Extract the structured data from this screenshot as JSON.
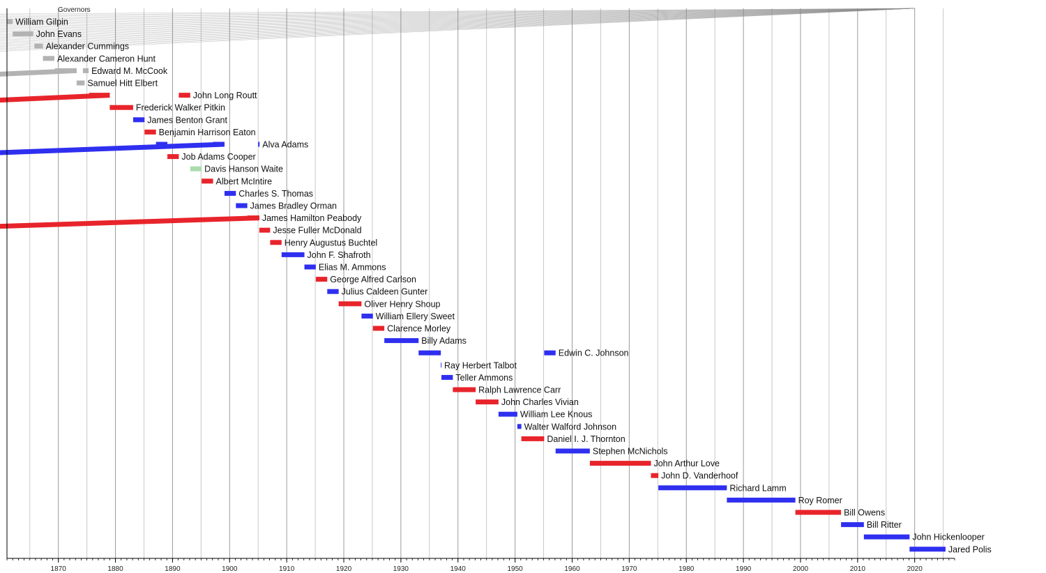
{
  "chart_data": {
    "type": "bar",
    "title": "Governors",
    "xlabel": "",
    "ylabel": "",
    "xlim": [
      1861,
      2027
    ],
    "x_ticks": [
      1870,
      1880,
      1890,
      1900,
      1910,
      1920,
      1930,
      1940,
      1950,
      1960,
      1970,
      1980,
      1990,
      2000,
      2010,
      2020
    ],
    "grid": true,
    "party_colors": {
      "Republican": "#e8242b",
      "Democratic": "#2f2ff0",
      "Populist": "#a9dcaf",
      "Territorial": "#b3b3b3"
    },
    "rows": [
      {
        "label": "William Gilpin",
        "terms": [
          [
            1861,
            1862
          ]
        ],
        "party": "Territorial"
      },
      {
        "label": "John Evans",
        "terms": [
          [
            1862,
            1865.6
          ]
        ],
        "party": "Territorial"
      },
      {
        "label": "Alexander Cummings",
        "terms": [
          [
            1865.8,
            1867.3
          ]
        ],
        "party": "Territorial"
      },
      {
        "label": "Alexander Cameron Hunt",
        "terms": [
          [
            1867.3,
            1869.3
          ]
        ],
        "party": "Territorial"
      },
      {
        "label": "Edward M. McCook",
        "terms": [
          [
            1869.4,
            1873.2
          ],
          [
            1874.3,
            1875.3
          ]
        ],
        "party": "Territorial"
      },
      {
        "label": "Samuel Hitt Elbert",
        "terms": [
          [
            1873.2,
            1874.6
          ]
        ],
        "party": "Territorial"
      },
      {
        "label": "John Long Routt",
        "terms": [
          [
            1875.4,
            1879.0
          ],
          [
            1891.1,
            1893.1
          ]
        ],
        "party": "Republican"
      },
      {
        "label": "Frederick Walker Pitkin",
        "terms": [
          [
            1879.0,
            1883.1
          ]
        ],
        "party": "Republican"
      },
      {
        "label": "James Benton Grant",
        "terms": [
          [
            1883.1,
            1885.1
          ]
        ],
        "party": "Democratic"
      },
      {
        "label": "Benjamin Harrison Eaton",
        "terms": [
          [
            1885.1,
            1887.1
          ]
        ],
        "party": "Republican"
      },
      {
        "label": "Alva Adams",
        "terms": [
          [
            1887.1,
            1889.1
          ],
          [
            1897.1,
            1899.1
          ],
          [
            1905.0,
            1905.25
          ]
        ],
        "party": "Democratic"
      },
      {
        "label": "Job Adams Cooper",
        "terms": [
          [
            1889.1,
            1891.1
          ]
        ],
        "party": "Republican"
      },
      {
        "label": "Davis Hanson Waite",
        "terms": [
          [
            1893.1,
            1895.1
          ]
        ],
        "party": "Populist"
      },
      {
        "label": "Albert McIntire",
        "terms": [
          [
            1895.1,
            1897.1
          ]
        ],
        "party": "Republican"
      },
      {
        "label": "Charles S. Thomas",
        "terms": [
          [
            1899.1,
            1901.1
          ]
        ],
        "party": "Democratic"
      },
      {
        "label": "James Bradley Orman",
        "terms": [
          [
            1901.1,
            1903.1
          ]
        ],
        "party": "Democratic"
      },
      {
        "label": "James Hamilton Peabody",
        "terms": [
          [
            1903.1,
            1905.2
          ]
        ],
        "party": "Republican"
      },
      {
        "label": "Jesse Fuller McDonald",
        "terms": [
          [
            1905.2,
            1907.1
          ]
        ],
        "party": "Republican"
      },
      {
        "label": "Henry Augustus Buchtel",
        "terms": [
          [
            1907.1,
            1909.1
          ]
        ],
        "party": "Republican"
      },
      {
        "label": "John F. Shafroth",
        "terms": [
          [
            1909.1,
            1913.1
          ]
        ],
        "party": "Democratic"
      },
      {
        "label": "Elias M. Ammons",
        "terms": [
          [
            1913.1,
            1915.1
          ]
        ],
        "party": "Democratic"
      },
      {
        "label": "George Alfred Carlson",
        "terms": [
          [
            1915.1,
            1917.1
          ]
        ],
        "party": "Republican"
      },
      {
        "label": "Julius Caldeen Gunter",
        "terms": [
          [
            1917.1,
            1919.1
          ]
        ],
        "party": "Democratic"
      },
      {
        "label": "Oliver Henry Shoup",
        "terms": [
          [
            1919.1,
            1923.1
          ]
        ],
        "party": "Republican"
      },
      {
        "label": "William Ellery Sweet",
        "terms": [
          [
            1923.1,
            1925.1
          ]
        ],
        "party": "Democratic"
      },
      {
        "label": "Clarence Morley",
        "terms": [
          [
            1925.1,
            1927.1
          ]
        ],
        "party": "Republican"
      },
      {
        "label": "Billy Adams",
        "terms": [
          [
            1927.1,
            1933.1
          ]
        ],
        "party": "Democratic"
      },
      {
        "label": "Edwin C. Johnson",
        "terms": [
          [
            1933.1,
            1937.0
          ],
          [
            1955.1,
            1957.1
          ]
        ],
        "party": "Democratic"
      },
      {
        "label": "Ray Herbert Talbot",
        "terms": [
          [
            1937.0,
            1937.1
          ]
        ],
        "party": "Democratic"
      },
      {
        "label": "Teller Ammons",
        "terms": [
          [
            1937.1,
            1939.1
          ]
        ],
        "party": "Democratic"
      },
      {
        "label": "Ralph Lawrence Carr",
        "terms": [
          [
            1939.1,
            1943.1
          ]
        ],
        "party": "Republican"
      },
      {
        "label": "John Charles Vivian",
        "terms": [
          [
            1943.1,
            1947.1
          ]
        ],
        "party": "Republican"
      },
      {
        "label": "William Lee Knous",
        "terms": [
          [
            1947.1,
            1950.4
          ]
        ],
        "party": "Democratic"
      },
      {
        "label": "Walter Walford Johnson",
        "terms": [
          [
            1950.4,
            1951.1
          ]
        ],
        "party": "Democratic"
      },
      {
        "label": "Daniel I. J. Thornton",
        "terms": [
          [
            1951.1,
            1955.1
          ]
        ],
        "party": "Republican"
      },
      {
        "label": "Stephen McNichols",
        "terms": [
          [
            1957.1,
            1963.1
          ]
        ],
        "party": "Democratic"
      },
      {
        "label": "John Arthur Love",
        "terms": [
          [
            1963.1,
            1973.8
          ]
        ],
        "party": "Republican"
      },
      {
        "label": "John D. Vanderhoof",
        "terms": [
          [
            1973.8,
            1975.1
          ]
        ],
        "party": "Republican"
      },
      {
        "label": "Richard Lamm",
        "terms": [
          [
            1975.1,
            1987.1
          ]
        ],
        "party": "Democratic"
      },
      {
        "label": "Roy Romer",
        "terms": [
          [
            1987.1,
            1999.1
          ]
        ],
        "party": "Democratic"
      },
      {
        "label": "Bill Owens",
        "terms": [
          [
            1999.1,
            2007.1
          ]
        ],
        "party": "Republican"
      },
      {
        "label": "Bill Ritter",
        "terms": [
          [
            2007.1,
            2011.1
          ]
        ],
        "party": "Democratic"
      },
      {
        "label": "John Hickenlooper",
        "terms": [
          [
            2011.1,
            2019.1
          ]
        ],
        "party": "Democratic"
      },
      {
        "label": "Jared Polis",
        "terms": [
          [
            2019.1,
            2025.4
          ]
        ],
        "party": "Democratic"
      }
    ]
  }
}
